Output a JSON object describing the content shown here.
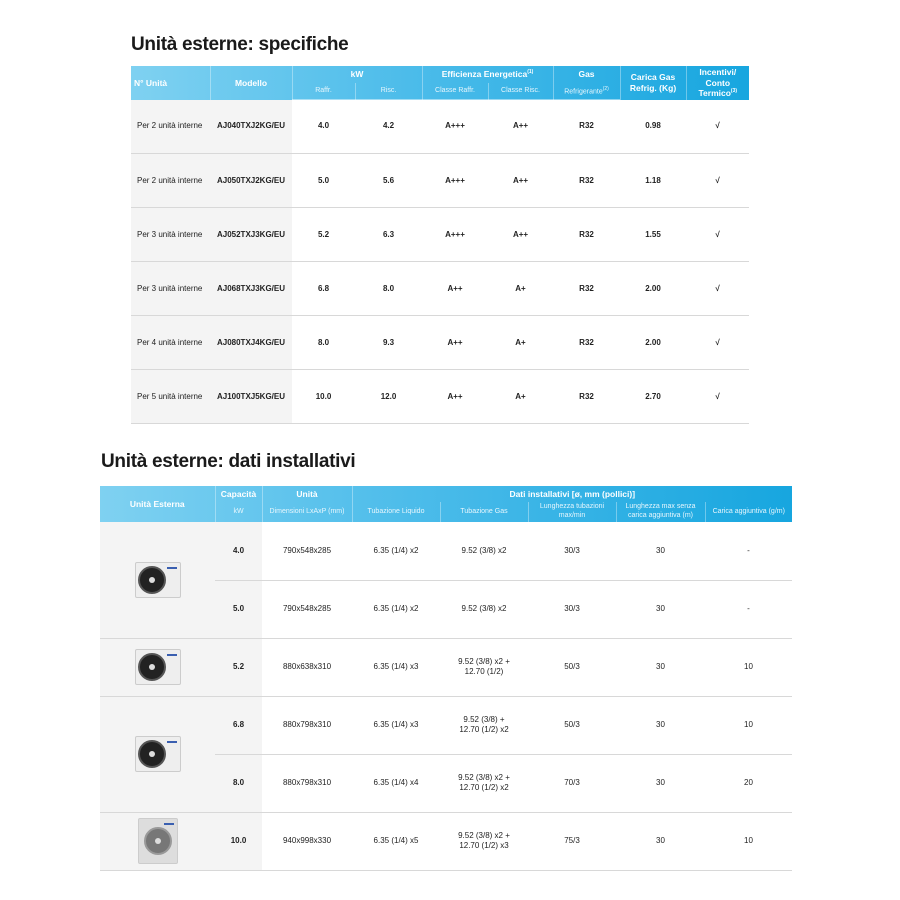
{
  "specs": {
    "title": "Unità esterne: specifiche",
    "headers": {
      "n_unita": "N° Unità",
      "modello": "Modello",
      "kw": "kW",
      "raffr": "Raffr.",
      "risc": "Risc.",
      "efficienza": "Efficienza Energetica",
      "eff_sup": "(1)",
      "classe_raffr": "Classe Raffr.",
      "classe_risc": "Classe Risc.",
      "gas": "Gas",
      "refrigerante": "Refrigerante",
      "ref_sup": "(2)",
      "carica": "Carica Gas Refrig. (Kg)",
      "incentivi": "Incentivi/ Conto Termico",
      "inc_sup": "(3)"
    },
    "rows": [
      [
        "Per 2 unità interne",
        "AJ040TXJ2KG/EU",
        "4.0",
        "4.2",
        "A+++",
        "A++",
        "R32",
        "0.98",
        "√"
      ],
      [
        "Per 2 unità interne",
        "AJ050TXJ2KG/EU",
        "5.0",
        "5.6",
        "A+++",
        "A++",
        "R32",
        "1.18",
        "√"
      ],
      [
        "Per 3 unità interne",
        "AJ052TXJ3KG/EU",
        "5.2",
        "6.3",
        "A+++",
        "A++",
        "R32",
        "1.55",
        "√"
      ],
      [
        "Per 3 unità interne",
        "AJ068TXJ3KG/EU",
        "6.8",
        "8.0",
        "A++",
        "A+",
        "R32",
        "2.00",
        "√"
      ],
      [
        "Per 4 unità interne",
        "AJ080TXJ4KG/EU",
        "8.0",
        "9.3",
        "A++",
        "A+",
        "R32",
        "2.00",
        "√"
      ],
      [
        "Per 5 unità interne",
        "AJ100TXJ5KG/EU",
        "10.0",
        "12.0",
        "A++",
        "A+",
        "R32",
        "2.70",
        "√"
      ]
    ]
  },
  "install": {
    "title": "Unità esterne: dati installativi",
    "headers": {
      "unita_esterna": "Unità Esterna",
      "capacita": "Capacità",
      "kw": "kW",
      "unita": "Unità",
      "dimensioni": "Dimensioni LxAxP (mm)",
      "dati": "Dati installativi [ø, mm (pollici)]",
      "liquido": "Tubazione Liquido",
      "gas": "Tubazione Gas",
      "lunghezza": "Lunghezza tubazioni max/min",
      "lunghezza_max": "Lunghezza max senza carica aggiuntiva (m)",
      "carica": "Carica aggiuntiva (g/m)"
    },
    "rows": [
      [
        "4.0",
        "790x548x285",
        "6.35 (1/4) x2",
        "9.52 (3/8) x2",
        "30/3",
        "30",
        "-"
      ],
      [
        "5.0",
        "790x548x285",
        "6.35 (1/4) x2",
        "9.52 (3/8) x2",
        "30/3",
        "30",
        "-"
      ],
      [
        "5.2",
        "880x638x310",
        "6.35 (1/4) x3",
        "9.52 (3/8) x2 + 12.70 (1/2)",
        "50/3",
        "30",
        "10"
      ],
      [
        "6.8",
        "880x798x310",
        "6.35 (1/4) x3",
        "9.52 (3/8) + 12.70 (1/2) x2",
        "50/3",
        "30",
        "10"
      ],
      [
        "8.0",
        "880x798x310",
        "6.35 (1/4) x4",
        "9.52 (3/8) x2 + 12.70 (1/2) x2",
        "70/3",
        "30",
        "20"
      ],
      [
        "10.0",
        "940x998x330",
        "6.35 (1/4) x5",
        "9.52 (3/8) x2 + 12.70 (1/2) x3",
        "75/3",
        "30",
        "10"
      ]
    ]
  }
}
